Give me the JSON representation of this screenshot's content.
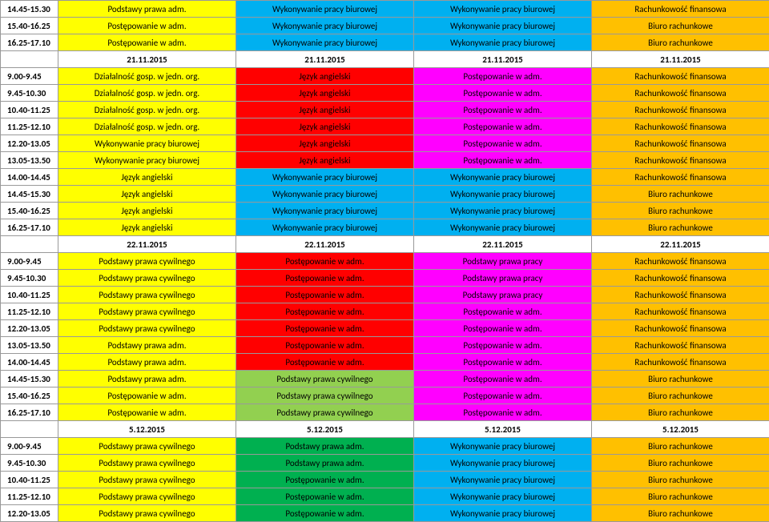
{
  "times": {
    "t1": "14.45-15.30",
    "t2": "15.40-16.25",
    "t3": "16.25-17.10",
    "r1": "9.00-9.45",
    "r2": "9.45-10.30",
    "r3": "10.40-11.25",
    "r4": "11.25-12.10",
    "r5": "12.20-13.05",
    "r6": "13.05-13.50",
    "r7": "14.00-14.45",
    "r8": "14.45-15.30",
    "r9": "15.40-16.25",
    "r10": "16.25-17.10"
  },
  "dates": {
    "d1": "21.11.2015",
    "d2": "22.11.2015",
    "d3": "5.12.2015"
  },
  "txt": {
    "ppa": "Podstawy prawa adm.",
    "pwa": "Postępowanie w adm.",
    "wpb": "Wykonywanie pracy biurowej",
    "rf": "Rachunkowość finansowa",
    "br": "Biuro rachunkowe",
    "dgjo": "Działalność gosp. w jedn. org.",
    "ja": "Język angielski",
    "ppc": "Podstawy prawa cywilnego",
    "ppp": "Podstawy prawa pracy"
  }
}
